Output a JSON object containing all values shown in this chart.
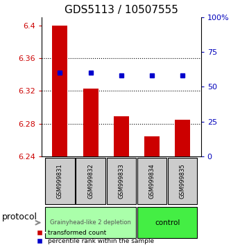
{
  "title": "GDS5113 / 10507555",
  "samples": [
    "GSM999831",
    "GSM999832",
    "GSM999833",
    "GSM999834",
    "GSM999835"
  ],
  "bar_values": [
    6.4,
    6.323,
    6.289,
    6.265,
    6.285
  ],
  "percentile_values": [
    60,
    60,
    58,
    58,
    58
  ],
  "bar_color": "#cc0000",
  "dot_color": "#0000cc",
  "ylim_left": [
    6.24,
    6.41
  ],
  "ylim_right": [
    0,
    100
  ],
  "yticks_left": [
    6.24,
    6.28,
    6.32,
    6.36,
    6.4
  ],
  "yticks_right": [
    0,
    25,
    50,
    75,
    100
  ],
  "ytick_labels_left": [
    "6.24",
    "6.28",
    "6.32",
    "6.36",
    "6.4"
  ],
  "ytick_labels_right": [
    "0",
    "25",
    "50",
    "75",
    "100%"
  ],
  "groups": [
    {
      "label": "Grainyhead-like 2 depletion",
      "samples": [
        0,
        1,
        2
      ],
      "color": "#aaffaa"
    },
    {
      "label": "control",
      "samples": [
        3,
        4
      ],
      "color": "#44ee44"
    }
  ],
  "protocol_label": "protocol",
  "legend_items": [
    {
      "label": "transformed count",
      "color": "#cc0000",
      "marker": "s"
    },
    {
      "label": "percentile rank within the sample",
      "color": "#0000cc",
      "marker": "s"
    }
  ],
  "bar_baseline": 6.24,
  "grid_color": "#000000",
  "background_color": "#ffffff",
  "xlabel_color": "#cc0000",
  "ylabel_right_color": "#0000bb"
}
